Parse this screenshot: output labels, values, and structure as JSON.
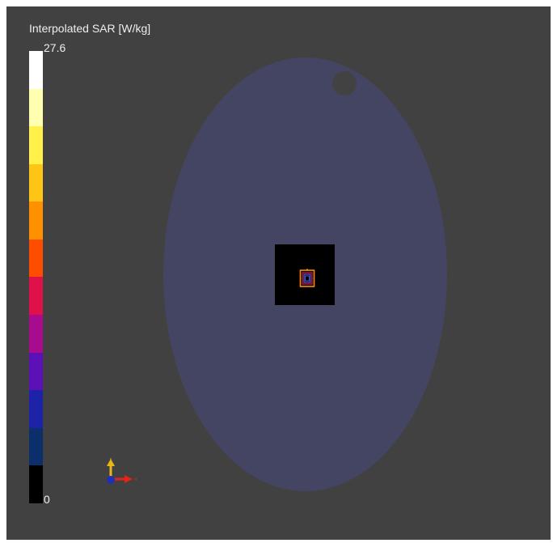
{
  "colorbar": {
    "title": "Interpolated SAR [W/kg]",
    "max_label": "27.6",
    "min_label": "0",
    "colors_top_to_bottom": [
      "#ffffff",
      "#ffffb0",
      "#fff04a",
      "#ffc514",
      "#ff9100",
      "#ff4d00",
      "#e0104a",
      "#a80b8e",
      "#5b10b8",
      "#1d23a8",
      "#0b2f6a",
      "#000000"
    ]
  },
  "scene": {
    "background": "#414141",
    "phantom_color": "#444562",
    "scan_area_color": "#000000"
  },
  "axes_triad": {
    "x_color": "#e0241c",
    "y_color": "#e6b817",
    "z_color": "#1f2fb8"
  }
}
